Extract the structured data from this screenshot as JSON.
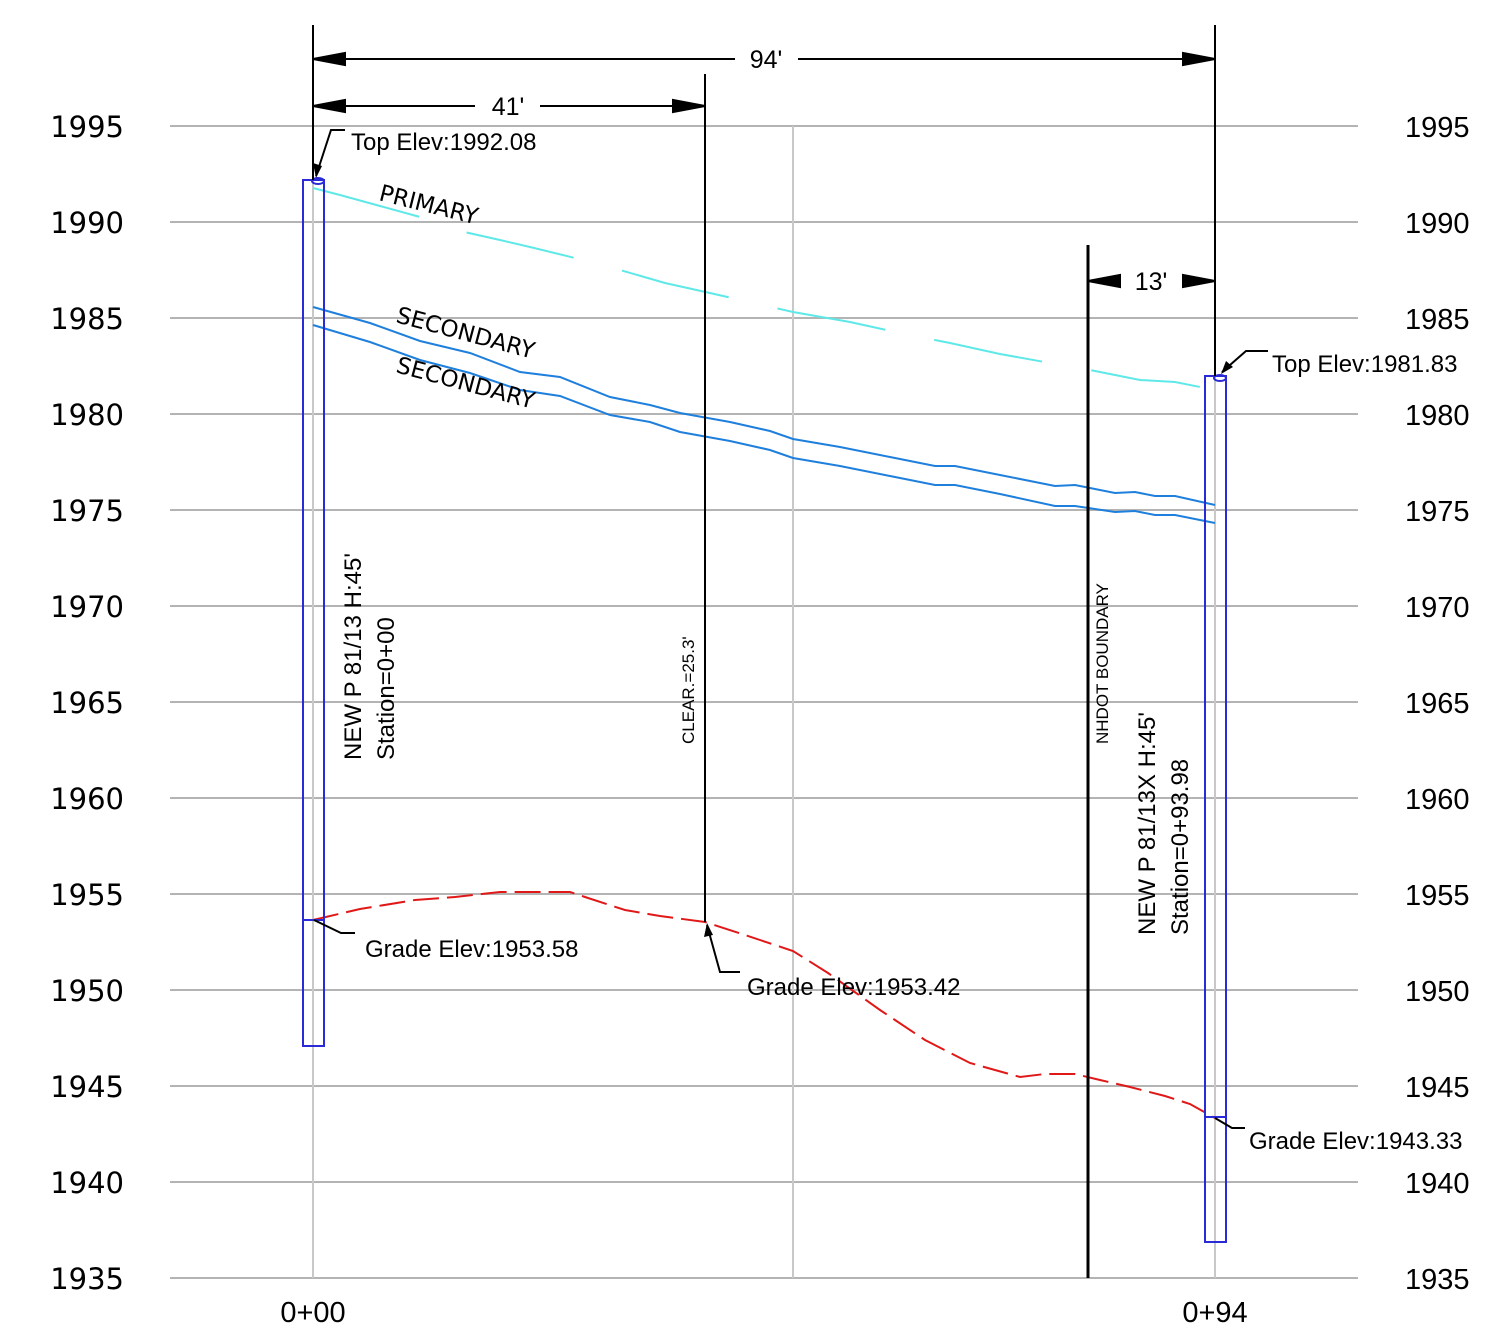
{
  "axes": {
    "y_ticks": [
      "1995",
      "1990",
      "1985",
      "1980",
      "1975",
      "1970",
      "1965",
      "1960",
      "1955",
      "1950",
      "1945",
      "1940",
      "1935"
    ],
    "x_ticks": [
      "0+00",
      "0+94"
    ]
  },
  "dimensions": {
    "overall": "94'",
    "to_clear": "41'",
    "boundary_to_pole": "13'"
  },
  "poles": {
    "left": {
      "name": "NEW P 81/13 H:45'",
      "station": "Station=0+00",
      "top_elev": "Top Elev:1992.08",
      "grade_elev": "Grade Elev:1953.58"
    },
    "right": {
      "name": "NEW P 81/13X H:45'",
      "station": "Station=0+93.98",
      "top_elev": "Top Elev:1981.83",
      "grade_elev": "Grade Elev:1943.33"
    }
  },
  "labels": {
    "clearance": "CLEAR.=25.3'",
    "mid_grade": "Grade Elev:1953.42",
    "boundary": "NHDOT BOUNDARY",
    "primary": "PRIMARY",
    "secondary_1": "SECONDARY",
    "secondary_2": "SECONDARY"
  },
  "colors": {
    "grid": "#b4b4b4",
    "pole": "#2a2ad6",
    "primary": "#5fe8e8",
    "secondary": "#1e7fdc",
    "ground": "#e01818"
  }
}
